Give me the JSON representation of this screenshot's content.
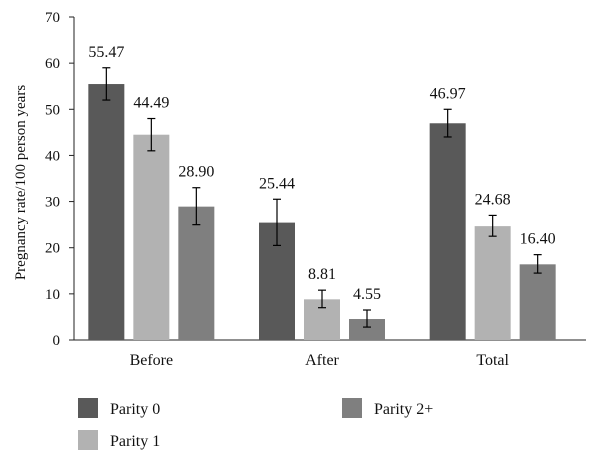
{
  "chart_data": {
    "type": "bar",
    "ylabel": "Pregnancy rate/100 person years",
    "categories": [
      "Before",
      "After",
      "Total"
    ],
    "ylim": [
      0,
      70
    ],
    "yticks": [
      0,
      10,
      20,
      30,
      40,
      50,
      60,
      70
    ],
    "grid": false,
    "legend_position": "bottom-left",
    "series": [
      {
        "name": "Parity 0",
        "color": "#595959",
        "values": [
          55.47,
          25.44,
          46.97
        ],
        "labels": [
          "55.47",
          "25.44",
          "46.97"
        ],
        "error_low": [
          52.0,
          20.5,
          44.0
        ],
        "error_high": [
          59.0,
          30.5,
          50.0
        ]
      },
      {
        "name": "Parity 1",
        "color": "#b2b2b2",
        "values": [
          44.49,
          8.81,
          24.68
        ],
        "labels": [
          "44.49",
          "8.81",
          "24.68"
        ],
        "error_low": [
          41.0,
          7.0,
          22.5
        ],
        "error_high": [
          48.0,
          10.8,
          27.0
        ]
      },
      {
        "name": "Parity 2+",
        "color": "#7f7f7f",
        "values": [
          28.9,
          4.55,
          16.4
        ],
        "labels": [
          "28.90",
          "4.55",
          "16.40"
        ],
        "error_low": [
          25.0,
          2.8,
          14.5
        ],
        "error_high": [
          33.0,
          6.5,
          18.5
        ]
      }
    ]
  }
}
